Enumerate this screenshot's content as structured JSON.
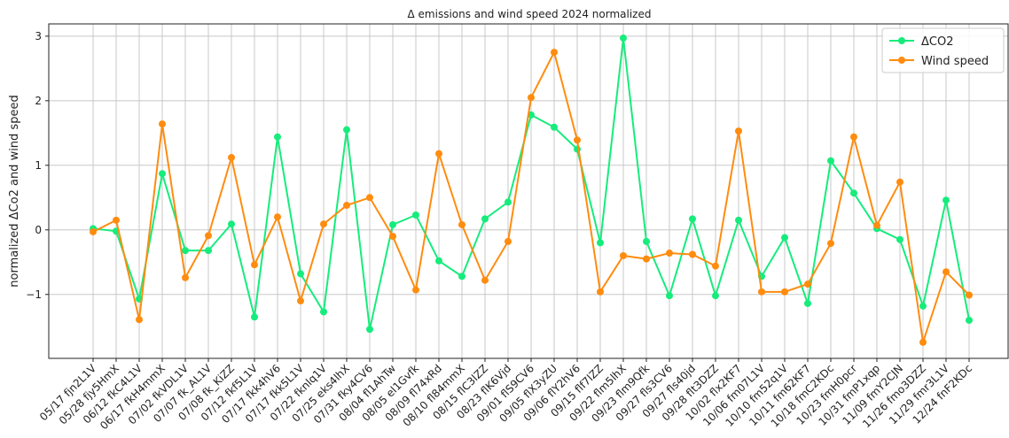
{
  "chart_data": {
    "type": "line",
    "title": "Δ emissions and wind speed 2024 normalized",
    "y_label": "normalized ΔCo2 and wind speed",
    "categories": [
      "05/17 fjn2L1V",
      "05/28 fjy5HmX",
      "06/12 fkC4L1V",
      "06/17 fkH4mmX",
      "07/02 fkVDL1V",
      "07/07 fk_AL1V",
      "07/08 fk_KiZZ",
      "07/12 fkf5L1V",
      "07/17 fkk4hV6",
      "07/17 fkk5L1V",
      "07/22 fknlq1V",
      "07/25 eks4lhX",
      "07/31 fky4CV6",
      "08/04 fl1AhTw",
      "08/05 el1Gvfk",
      "08/09 fl74xRd",
      "08/10 fl84mmX",
      "08/15 flC3lZZ",
      "08/23 flK6Vjd",
      "09/01 flS9CV6",
      "09/05 flX3yZU",
      "09/06 flY2hV6",
      "09/15 flf7lZZ",
      "09/22 flm5lhX",
      "09/23 flm9Qfk",
      "09/27 fls3CV6",
      "09/27 fls40jd",
      "09/28 flt3DZZ",
      "10/02 flx2KF7",
      "10/06 fm07L1V",
      "10/10 fm52q1V",
      "10/11 fm62KF7",
      "10/18 fmC2KDc",
      "10/23 fmH0pcr",
      "10/31 fmP1xqp",
      "11/09 fmY2CJN",
      "11/26 fmo3DZZ",
      "11/29 fmr3L1V",
      "12/24 fnF2KDc"
    ],
    "series": [
      {
        "name": "ΔCO2",
        "color": "#16ec7c",
        "values": [
          0.02,
          -0.02,
          -1.07,
          0.87,
          -0.32,
          -0.32,
          0.09,
          -1.35,
          1.44,
          -0.68,
          -1.27,
          1.55,
          -1.54,
          0.08,
          0.23,
          -0.48,
          -0.72,
          0.17,
          0.43,
          1.78,
          1.59,
          1.25,
          -0.2,
          2.97,
          -0.18,
          -1.02,
          0.17,
          -1.02,
          0.15,
          -0.72,
          -0.12,
          -1.14,
          1.07,
          0.57,
          0.02,
          -0.15,
          -1.18,
          0.46,
          -1.4
        ]
      },
      {
        "name": "Wind speed",
        "color": "#ff8c0f",
        "values": [
          -0.03,
          0.15,
          -1.39,
          1.64,
          -0.74,
          -0.09,
          1.12,
          -0.54,
          0.2,
          -1.1,
          0.09,
          0.38,
          0.5,
          -0.1,
          -0.93,
          1.18,
          0.08,
          -0.78,
          -0.18,
          2.05,
          2.75,
          1.39,
          -0.96,
          -0.4,
          -0.45,
          -0.36,
          -0.38,
          -0.56,
          1.53,
          -0.96,
          -0.96,
          -0.84,
          -0.21,
          1.44,
          0.07,
          0.74,
          -1.74,
          -0.65,
          -1.01
        ]
      }
    ],
    "ylim": [
      -1.99,
      3.19
    ],
    "yticks": [
      {
        "value": -1,
        "label": "−1"
      },
      0,
      1,
      2,
      3
    ],
    "grid": true,
    "legend": "upper right"
  }
}
